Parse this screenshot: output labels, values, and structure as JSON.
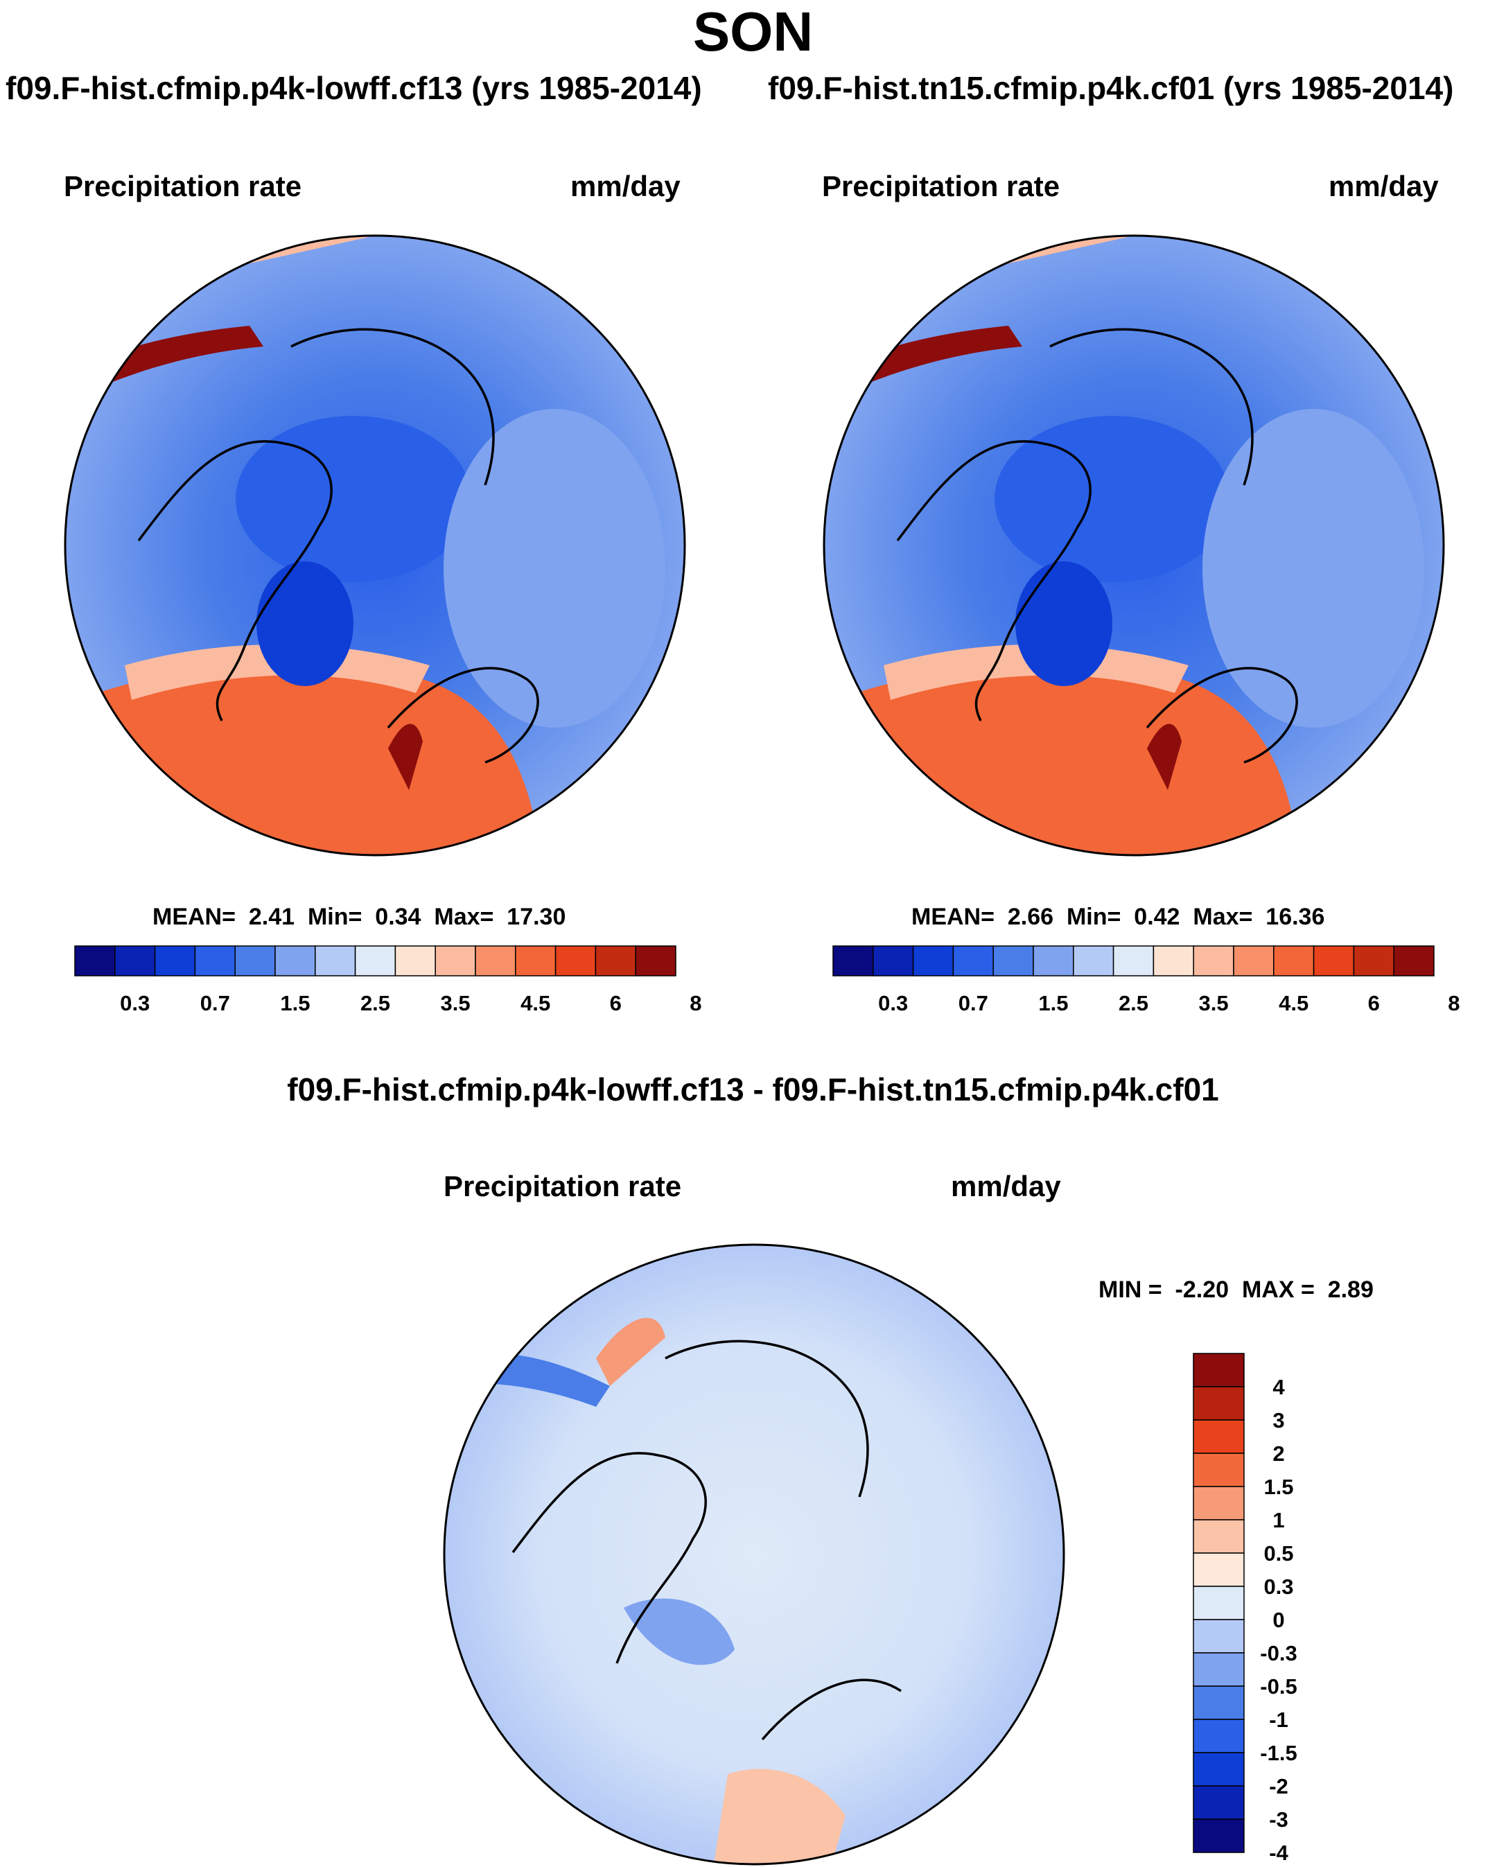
{
  "title": "SON",
  "chart_data": [
    {
      "type": "heatmap",
      "map": "north-polar-stereographic",
      "title": "f09.F-hist.cfmip.p4k-lowff.cf13 (yrs 1985-2014)",
      "variable": "Precipitation rate",
      "units": "mm/day",
      "stats": {
        "mean_label": "MEAN=",
        "mean": "2.41",
        "min_label": "Min=",
        "min": "0.34",
        "max_label": "Max=",
        "max": "17.30"
      },
      "colorbar": {
        "orientation": "horizontal",
        "colors": [
          "#0a0a80",
          "#0a23b4",
          "#0f3ed6",
          "#2a5fe8",
          "#4a7de8",
          "#7fa3ef",
          "#b4caf6",
          "#dfeaf8",
          "#fde4d2",
          "#fbbba0",
          "#f79068",
          "#f26638",
          "#e8431c",
          "#c42c12",
          "#8c0d0b"
        ],
        "tick_labels": [
          "0.3",
          "0.7",
          "1.5",
          "2.5",
          "3.5",
          "4.5",
          "6",
          "8"
        ]
      }
    },
    {
      "type": "heatmap",
      "map": "north-polar-stereographic",
      "title": "f09.F-hist.tn15.cfmip.p4k.cf01 (yrs 1985-2014)",
      "variable": "Precipitation rate",
      "units": "mm/day",
      "stats": {
        "mean_label": "MEAN=",
        "mean": "2.66",
        "min_label": "Min=",
        "min": "0.42",
        "max_label": "Max=",
        "max": "16.36"
      },
      "colorbar": {
        "orientation": "horizontal",
        "colors": [
          "#0a0a80",
          "#0a23b4",
          "#0f3ed6",
          "#2a5fe8",
          "#4a7de8",
          "#7fa3ef",
          "#b4caf6",
          "#dfeaf8",
          "#fde4d2",
          "#fbbba0",
          "#f79068",
          "#f26638",
          "#e8431c",
          "#c42c12",
          "#8c0d0b"
        ],
        "tick_labels": [
          "0.3",
          "0.7",
          "1.5",
          "2.5",
          "3.5",
          "4.5",
          "6",
          "8"
        ]
      }
    },
    {
      "type": "heatmap",
      "map": "north-polar-stereographic",
      "title": "f09.F-hist.cfmip.p4k-lowff.cf13 - f09.F-hist.tn15.cfmip.p4k.cf01",
      "variable": "Precipitation rate",
      "units": "mm/day",
      "stats": {
        "min_label": "MIN =",
        "min": "-2.20",
        "max_label": "MAX =",
        "max": "2.89"
      },
      "colorbar": {
        "orientation": "vertical",
        "colors": [
          "#8c0d0b",
          "#b8230f",
          "#e8431c",
          "#f26a3c",
          "#f79a78",
          "#fbc3a8",
          "#fde8da",
          "#dfeaf8",
          "#b4caf6",
          "#7fa3ef",
          "#4a7de8",
          "#2a5fe8",
          "#0f3ed6",
          "#0a23b4",
          "#0a0a80"
        ],
        "tick_labels": [
          "4",
          "3",
          "2",
          "1.5",
          "1",
          "0.5",
          "0.3",
          "0",
          "-0.3",
          "-0.5",
          "-1",
          "-1.5",
          "-2",
          "-3",
          "-4"
        ]
      }
    }
  ]
}
